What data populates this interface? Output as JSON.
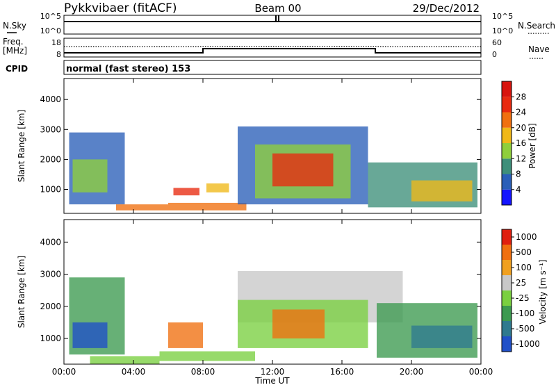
{
  "header": {
    "station": "Pykkvibaer (fitACF)",
    "beam": "Beam 00",
    "date": "29/Dec/2012"
  },
  "top_panel": {
    "left_label": "N.Sky",
    "right_label": "N.Search",
    "left_ticks": [
      "10^5",
      "10^0"
    ],
    "right_ticks": [
      "10^5",
      "10^0"
    ]
  },
  "freq_panel": {
    "left_label_1": "Freq.",
    "left_label_2": "[MHz]",
    "right_label": "Nave",
    "left_ticks": [
      "18",
      "8"
    ],
    "right_ticks": [
      "60",
      "0"
    ]
  },
  "cpid": {
    "label": "CPID",
    "value": "normal (fast stereo) 153"
  },
  "chart_data": [
    {
      "type": "heatmap",
      "name": "power",
      "ylabel": "Slant Range [km]",
      "yticks": [
        "1000",
        "2000",
        "3000",
        "4000"
      ],
      "ylim": [
        200,
        4700
      ],
      "colorbar": {
        "label": "Power [dB]",
        "ticks": [
          "4",
          "8",
          "12",
          "16",
          "20",
          "24",
          "28"
        ],
        "colors": [
          "#1414ff",
          "#2a5fb8",
          "#3e8f7a",
          "#8fcf3c",
          "#f0b818",
          "#f07010",
          "#e82a10",
          "#d8140e"
        ]
      },
      "regions": [
        {
          "t0": 0.3,
          "t1": 3.5,
          "r0": 500,
          "r1": 2900,
          "level": 1
        },
        {
          "t0": 0.5,
          "t1": 2.5,
          "r0": 900,
          "r1": 2000,
          "level": 3
        },
        {
          "t0": 3.0,
          "t1": 6.0,
          "r0": 300,
          "r1": 500,
          "level": 5
        },
        {
          "t0": 6.3,
          "t1": 7.8,
          "r0": 800,
          "r1": 1050,
          "level": 6
        },
        {
          "t0": 6.0,
          "t1": 10.5,
          "r0": 300,
          "r1": 550,
          "level": 5
        },
        {
          "t0": 8.2,
          "t1": 9.5,
          "r0": 900,
          "r1": 1200,
          "level": 4
        },
        {
          "t0": 10.0,
          "t1": 17.5,
          "r0": 500,
          "r1": 3100,
          "level": 1
        },
        {
          "t0": 11.0,
          "t1": 16.5,
          "r0": 700,
          "r1": 2500,
          "level": 3
        },
        {
          "t0": 12.0,
          "t1": 15.5,
          "r0": 1100,
          "r1": 2200,
          "level": 6
        },
        {
          "t0": 17.5,
          "t1": 23.8,
          "r0": 400,
          "r1": 1900,
          "level": 2
        },
        {
          "t0": 20.0,
          "t1": 23.5,
          "r0": 600,
          "r1": 1300,
          "level": 4
        }
      ]
    },
    {
      "type": "heatmap",
      "name": "velocity",
      "ylabel": "Slant Range [km]",
      "yticks": [
        "1000",
        "2000",
        "3000",
        "4000"
      ],
      "ylim": [
        200,
        4700
      ],
      "colorbar": {
        "label": "Velocity [m s⁻¹]",
        "ticks": [
          "1000",
          "500",
          "100",
          "25",
          "-25",
          "-100",
          "-500",
          "-1000"
        ],
        "colors": [
          "#2050c8",
          "#2f7a8f",
          "#3c9a50",
          "#7ad040",
          "#c8c8c8",
          "#f0a020",
          "#f07010",
          "#e02010"
        ]
      },
      "regions": [
        {
          "t0": 0.3,
          "t1": 3.5,
          "r0": 500,
          "r1": 2900,
          "level": 2
        },
        {
          "t0": 0.5,
          "t1": 2.5,
          "r0": 700,
          "r1": 1500,
          "level": 0
        },
        {
          "t0": 1.5,
          "t1": 5.5,
          "r0": 200,
          "r1": 450,
          "level": 3
        },
        {
          "t0": 6.0,
          "t1": 8.0,
          "r0": 700,
          "r1": 1500,
          "level": 6
        },
        {
          "t0": 5.5,
          "t1": 11.0,
          "r0": 300,
          "r1": 600,
          "level": 3
        },
        {
          "t0": 10.0,
          "t1": 19.5,
          "r0": 1500,
          "r1": 3100,
          "level": 4
        },
        {
          "t0": 10.0,
          "t1": 17.5,
          "r0": 700,
          "r1": 2200,
          "level": 3
        },
        {
          "t0": 12.0,
          "t1": 15.0,
          "r0": 1000,
          "r1": 1900,
          "level": 6
        },
        {
          "t0": 18.0,
          "t1": 23.8,
          "r0": 400,
          "r1": 2100,
          "level": 2
        },
        {
          "t0": 20.0,
          "t1": 23.5,
          "r0": 700,
          "r1": 1400,
          "level": 1
        }
      ]
    }
  ],
  "x_axis": {
    "label": "Time UT",
    "ticks": [
      "00:00",
      "04:00",
      "08:00",
      "12:00",
      "16:00",
      "20:00",
      "00:00"
    ]
  }
}
